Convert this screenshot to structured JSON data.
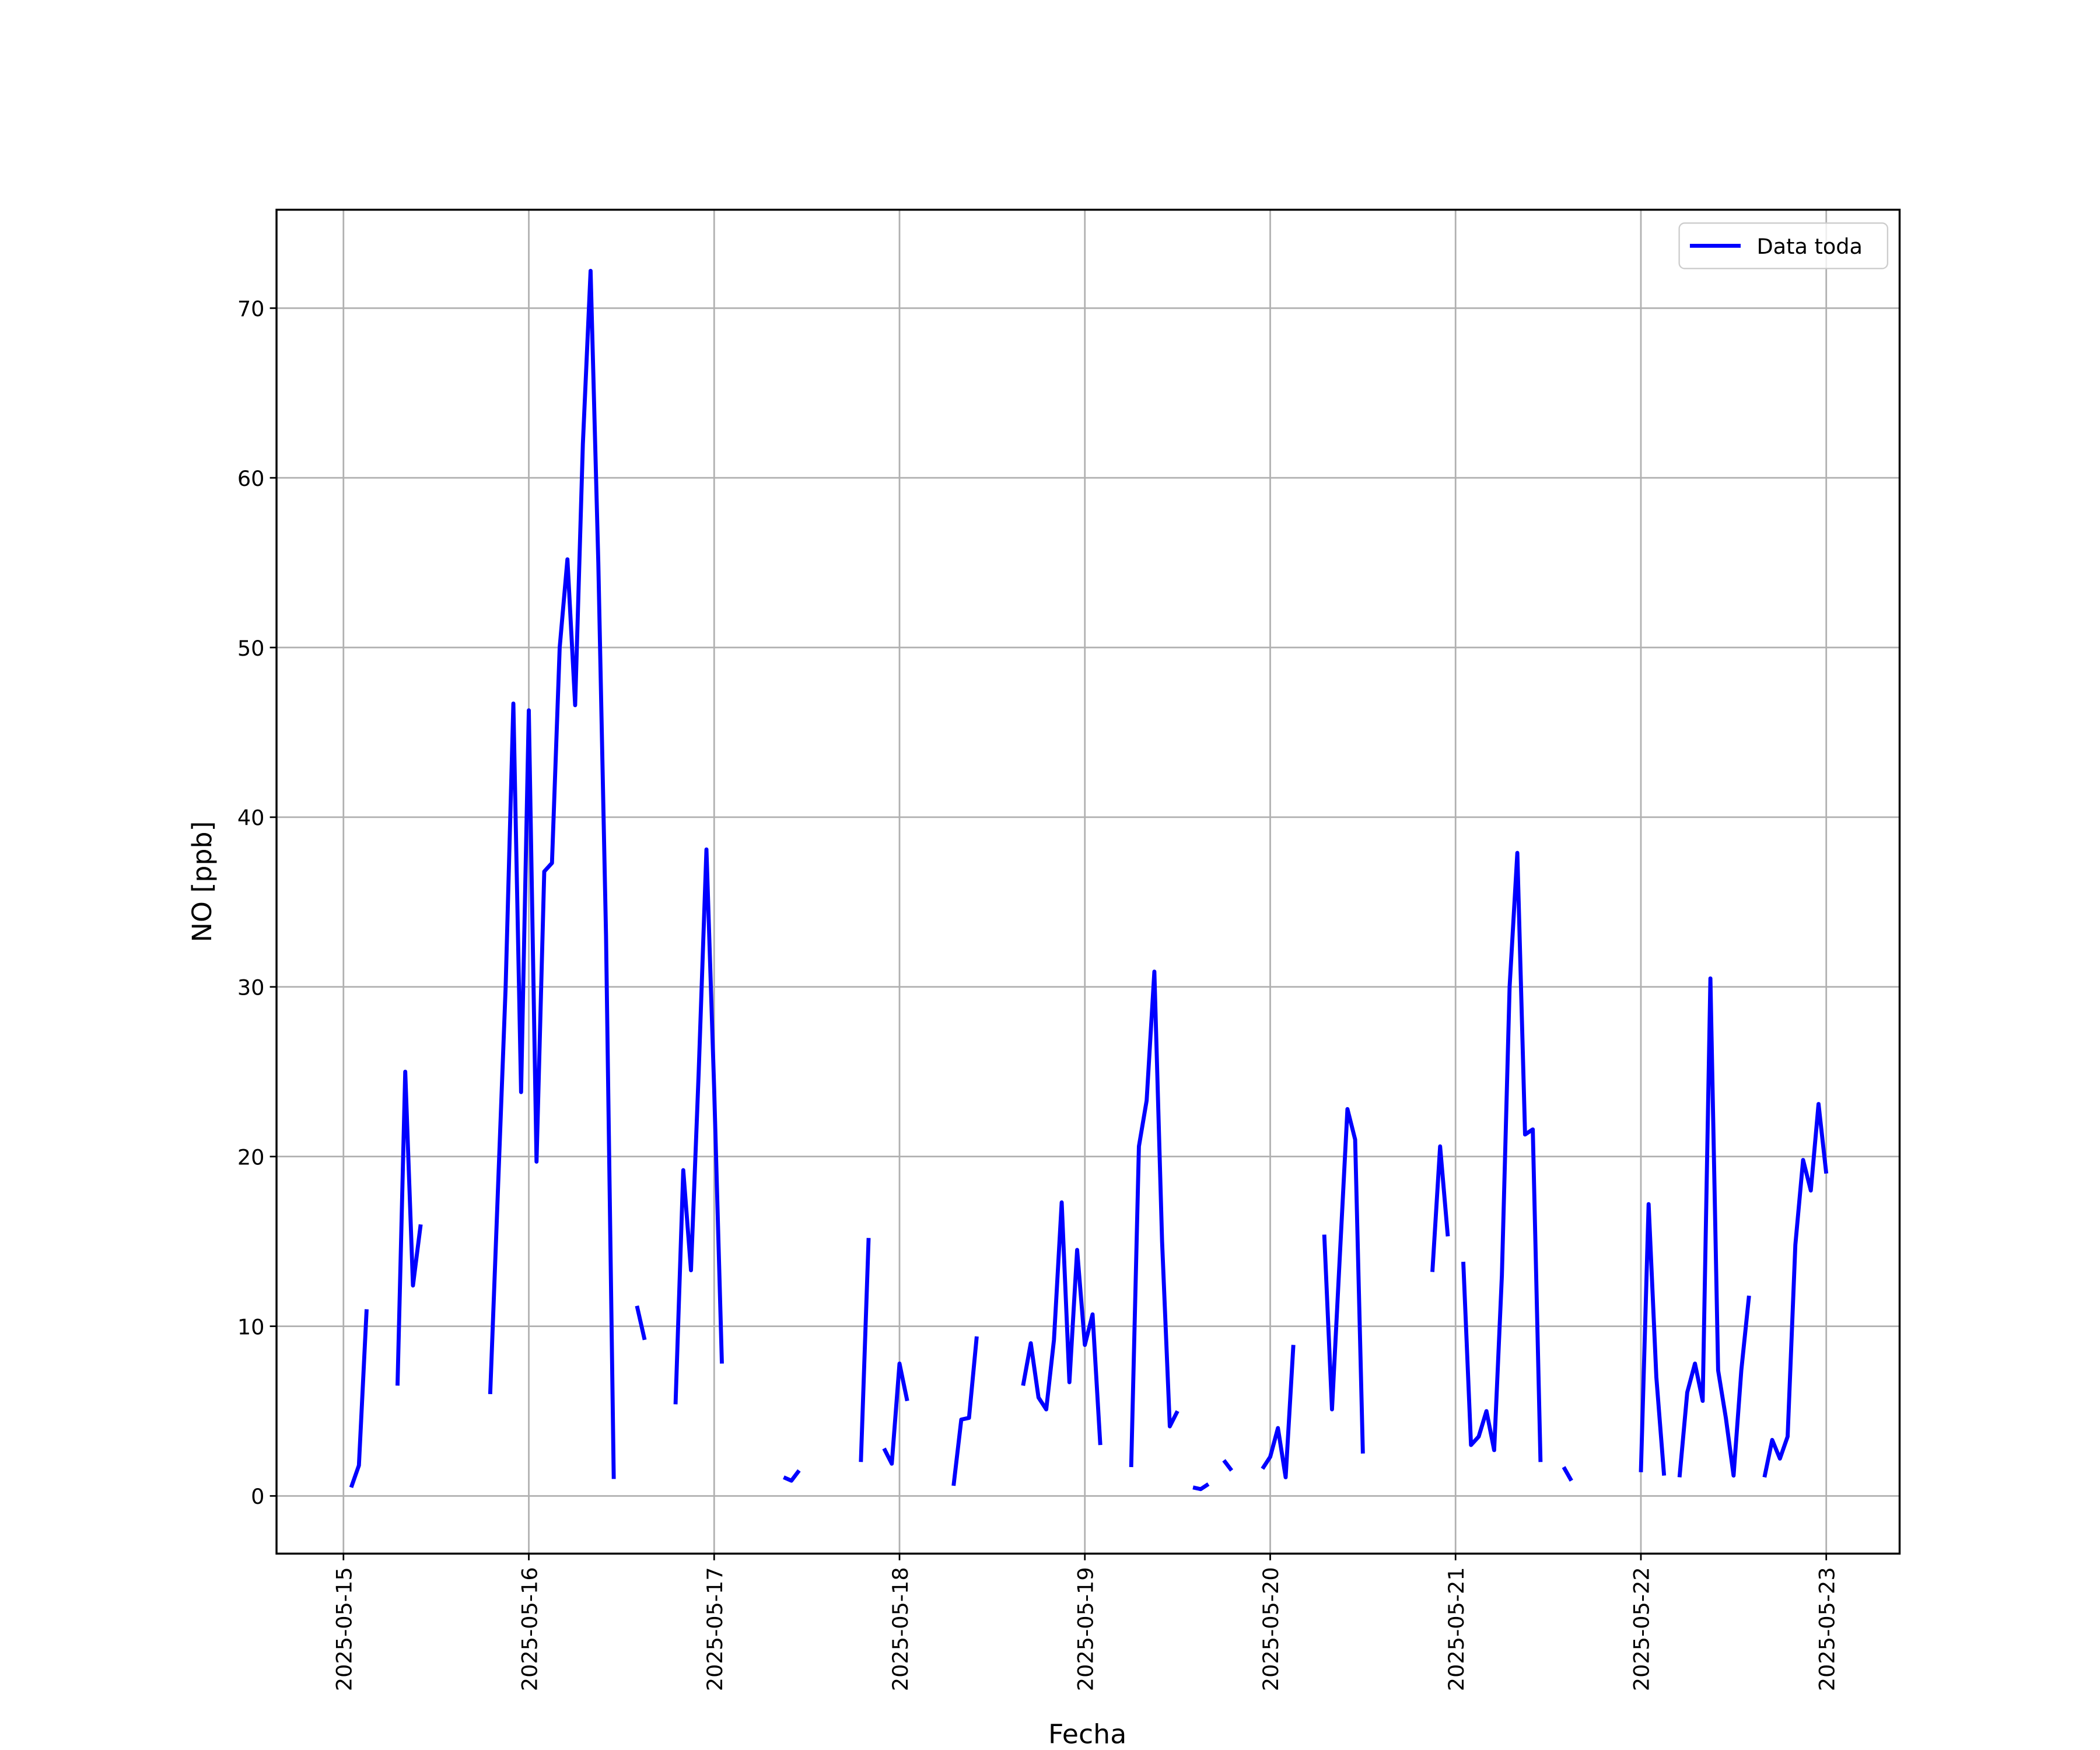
{
  "chart_data": {
    "type": "line",
    "xlabel": "Fecha",
    "ylabel": "NO [ppb]",
    "x": [
      "2025-05-15 01:00",
      "2025-05-15 02:00",
      "2025-05-15 03:00",
      "2025-05-15 05:00",
      "2025-05-15 07:00",
      "2025-05-15 08:00",
      "2025-05-15 09:00",
      "2025-05-15 10:00",
      "2025-05-15 14:00",
      "2025-05-15 19:00",
      "2025-05-15 20:00",
      "2025-05-15 21:00",
      "2025-05-15 22:00",
      "2025-05-15 23:00",
      "2025-05-16 00:00",
      "2025-05-16 01:00",
      "2025-05-16 02:00",
      "2025-05-16 03:00",
      "2025-05-16 04:00",
      "2025-05-16 05:00",
      "2025-05-16 06:00",
      "2025-05-16 07:00",
      "2025-05-16 08:00",
      "2025-05-16 09:00",
      "2025-05-16 10:00",
      "2025-05-16 11:00",
      "2025-05-16 12:00",
      "2025-05-16 14:00",
      "2025-05-16 15:00",
      "2025-05-16 17:00",
      "2025-05-16 19:00",
      "2025-05-16 20:00",
      "2025-05-16 21:00",
      "2025-05-16 22:00",
      "2025-05-16 23:00",
      "2025-05-17 00:00",
      "2025-05-17 01:00",
      "2025-05-17 05:00",
      "2025-05-17 09:00",
      "2025-05-17 10:00",
      "2025-05-17 11:00",
      "2025-05-17 15:00",
      "2025-05-17 19:00",
      "2025-05-17 20:00",
      "2025-05-17 21:00",
      "2025-05-17 22:00",
      "2025-05-17 23:00",
      "2025-05-18 00:00",
      "2025-05-18 01:00",
      "2025-05-18 04:00",
      "2025-05-18 07:00",
      "2025-05-18 08:00",
      "2025-05-18 09:00",
      "2025-05-18 10:00",
      "2025-05-18 13:00",
      "2025-05-18 16:00",
      "2025-05-18 17:00",
      "2025-05-18 18:00",
      "2025-05-18 19:00",
      "2025-05-18 20:00",
      "2025-05-18 21:00",
      "2025-05-18 22:00",
      "2025-05-18 23:00",
      "2025-05-19 00:00",
      "2025-05-19 01:00",
      "2025-05-19 02:00",
      "2025-05-19 04:00",
      "2025-05-19 06:00",
      "2025-05-19 07:00",
      "2025-05-19 08:00",
      "2025-05-19 09:00",
      "2025-05-19 10:00",
      "2025-05-19 11:00",
      "2025-05-19 12:00",
      "2025-05-19 13:00",
      "2025-05-19 14:00",
      "2025-05-19 15:00",
      "2025-05-19 16:00",
      "2025-05-19 17:00",
      "2025-05-19 18:00",
      "2025-05-19 19:00",
      "2025-05-19 21:00",
      "2025-05-19 23:00",
      "2025-05-20 00:00",
      "2025-05-20 01:00",
      "2025-05-20 02:00",
      "2025-05-20 03:00",
      "2025-05-20 05:00",
      "2025-05-20 07:00",
      "2025-05-20 08:00",
      "2025-05-20 09:00",
      "2025-05-20 10:00",
      "2025-05-20 11:00",
      "2025-05-20 12:00",
      "2025-05-20 16:00",
      "2025-05-20 21:00",
      "2025-05-20 22:00",
      "2025-05-20 23:00",
      "2025-05-21 00:00",
      "2025-05-21 01:00",
      "2025-05-21 02:00",
      "2025-05-21 03:00",
      "2025-05-21 04:00",
      "2025-05-21 05:00",
      "2025-05-21 06:00",
      "2025-05-21 07:00",
      "2025-05-21 08:00",
      "2025-05-21 09:00",
      "2025-05-21 10:00",
      "2025-05-21 11:00",
      "2025-05-21 12:00",
      "2025-05-21 14:00",
      "2025-05-21 15:00",
      "2025-05-21 19:00",
      "2025-05-22 00:00",
      "2025-05-22 01:00",
      "2025-05-22 02:00",
      "2025-05-22 03:00",
      "2025-05-22 04:00",
      "2025-05-22 05:00",
      "2025-05-22 06:00",
      "2025-05-22 07:00",
      "2025-05-22 08:00",
      "2025-05-22 09:00",
      "2025-05-22 10:00",
      "2025-05-22 11:00",
      "2025-05-22 12:00",
      "2025-05-22 13:00",
      "2025-05-22 14:00",
      "2025-05-22 15:00",
      "2025-05-22 16:00",
      "2025-05-22 17:00",
      "2025-05-22 18:00",
      "2025-05-22 19:00",
      "2025-05-22 20:00",
      "2025-05-22 21:00",
      "2025-05-22 22:00",
      "2025-05-22 23:00",
      "2025-05-23 00:00"
    ],
    "series": [
      {
        "name": "Data toda",
        "color": "#0000ff",
        "values": [
          0.5,
          1.8,
          11,
          null,
          6.5,
          25,
          12.4,
          16,
          null,
          6,
          18,
          30,
          46.7,
          23.8,
          46.3,
          19.7,
          36.8,
          37.3,
          50,
          55.2,
          46.6,
          62,
          72.2,
          55,
          33,
          1,
          null,
          11.2,
          9.2,
          null,
          5.4,
          19.2,
          13.3,
          25,
          38.1,
          24,
          7.8,
          null,
          1.1,
          0.9,
          1.5,
          null,
          2,
          15.2,
          null,
          2.8,
          1.9,
          7.8,
          5.6,
          null,
          0.6,
          4.5,
          4.6,
          9.4,
          null,
          6.5,
          9,
          5.8,
          5.1,
          9.2,
          17.3,
          6.7,
          14.5,
          8.9,
          10.7,
          3,
          null,
          1.7,
          20.6,
          23.3,
          30.9,
          15,
          4.1,
          5,
          null,
          0.5,
          0.4,
          0.7,
          null,
          2.1,
          1.5,
          null,
          1.6,
          2.3,
          4,
          1.1,
          8.9,
          null,
          15.4,
          5.1,
          14,
          22.8,
          21,
          2.5,
          null,
          13.2,
          20.6,
          15.3,
          null,
          13.8,
          3,
          3.5,
          5,
          2.7,
          13,
          30,
          37.9,
          21.3,
          21.6,
          2,
          null,
          1.7,
          0.9,
          null,
          1.4,
          17.2,
          7,
          1.2,
          null,
          1.1,
          6.1,
          7.8,
          5.6,
          30.5,
          7.4,
          4.6,
          1.2,
          7.4,
          11.8,
          null,
          1.1,
          3.3,
          2.2,
          3.5,
          14.8,
          19.8,
          18,
          23.1,
          19
        ]
      }
    ],
    "xlim": [
      "2025-05-14 15:20",
      "2025-05-23 09:30"
    ],
    "xticks": [
      "2025-05-15",
      "2025-05-16",
      "2025-05-17",
      "2025-05-18",
      "2025-05-19",
      "2025-05-20",
      "2025-05-21",
      "2025-05-22",
      "2025-05-23"
    ],
    "ylim": [
      -3.4,
      75.8
    ],
    "yticks": [
      0,
      10,
      20,
      30,
      40,
      50,
      60,
      70
    ],
    "grid": true,
    "legend": "upper right"
  }
}
